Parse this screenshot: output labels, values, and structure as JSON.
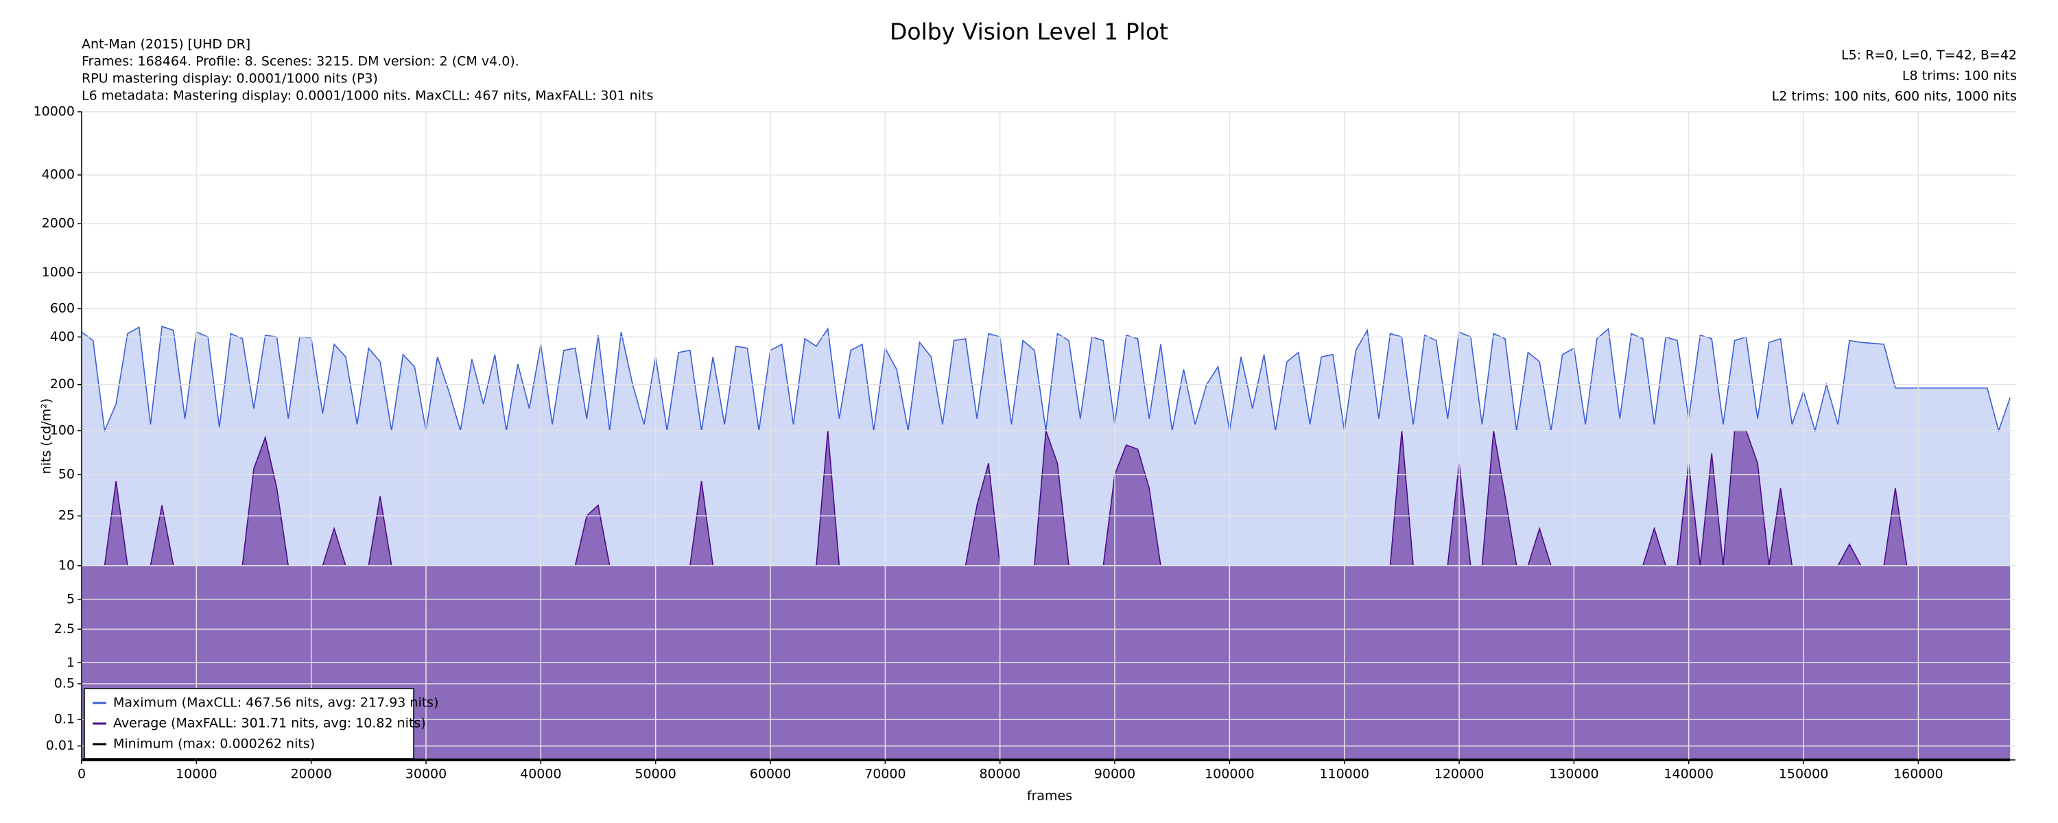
{
  "chart_data": {
    "type": "area-line",
    "title": "Dolby Vision Level 1 Plot",
    "info_left": [
      "Ant-Man (2015) [UHD DR]",
      "Frames: 168464. Profile: 8. Scenes: 3215. DM version: 2 (CM v4.0).",
      "RPU mastering display: 0.0001/1000 nits  (P3)",
      "L6 metadata: Mastering display: 0.0001/1000 nits. MaxCLL: 467 nits, MaxFALL: 301 nits"
    ],
    "info_right": [
      "L5: R=0, L=0, T=42, B=42",
      "L8 trims: 100 nits",
      "L2 trims: 100 nits, 600 nits, 1000 nits"
    ],
    "x_label": "frames",
    "y_label": "nits (cd/m²)",
    "y_scale": "pq",
    "grid": true,
    "legend": "lower left",
    "xlim": [
      0,
      168464
    ],
    "xticks": [
      0,
      10000,
      20000,
      30000,
      40000,
      50000,
      60000,
      70000,
      80000,
      90000,
      100000,
      110000,
      120000,
      130000,
      140000,
      150000,
      160000
    ],
    "ylim": [
      0,
      10000
    ],
    "yticks": [
      0.01,
      0.1,
      0.5,
      1,
      2.5,
      5,
      10,
      25,
      50,
      100,
      200,
      400,
      600,
      1000,
      2000,
      4000,
      10000
    ],
    "x": [
      0,
      1000,
      2000,
      3000,
      4000,
      5000,
      6000,
      7000,
      8000,
      9000,
      10000,
      11000,
      12000,
      13000,
      14000,
      15000,
      16000,
      17000,
      18000,
      19000,
      20000,
      21000,
      22000,
      23000,
      24000,
      25000,
      26000,
      27000,
      28000,
      29000,
      30000,
      31000,
      32000,
      33000,
      34000,
      35000,
      36000,
      37000,
      38000,
      39000,
      40000,
      41000,
      42000,
      43000,
      44000,
      45000,
      46000,
      47000,
      48000,
      49000,
      50000,
      51000,
      52000,
      53000,
      54000,
      55000,
      56000,
      57000,
      58000,
      59000,
      60000,
      61000,
      62000,
      63000,
      64000,
      65000,
      66000,
      67000,
      68000,
      69000,
      70000,
      71000,
      72000,
      73000,
      74000,
      75000,
      76000,
      77000,
      78000,
      79000,
      80000,
      81000,
      82000,
      83000,
      84000,
      85000,
      86000,
      87000,
      88000,
      89000,
      90000,
      91000,
      92000,
      93000,
      94000,
      95000,
      96000,
      97000,
      98000,
      99000,
      100000,
      101000,
      102000,
      103000,
      104000,
      105000,
      106000,
      107000,
      108000,
      109000,
      110000,
      111000,
      112000,
      113000,
      114000,
      115000,
      116000,
      117000,
      118000,
      119000,
      120000,
      121000,
      122000,
      123000,
      124000,
      125000,
      126000,
      127000,
      128000,
      129000,
      130000,
      131000,
      132000,
      133000,
      134000,
      135000,
      136000,
      137000,
      138000,
      139000,
      140000,
      141000,
      142000,
      143000,
      144000,
      145000,
      146000,
      147000,
      148000,
      149000,
      150000,
      151000,
      152000,
      153000,
      154000,
      155000,
      156000,
      157000,
      158000,
      159000,
      160000,
      161000,
      162000,
      163000,
      164000,
      165000,
      166000,
      167000,
      168000
    ],
    "series": [
      {
        "name": "Maximum (MaxCLL: 467.56 nits, avg: 217.93 nits)",
        "color": "#3c5fd8",
        "fill": "#d0d9f5",
        "values": [
          430,
          380,
          100,
          150,
          420,
          460,
          110,
          465,
          440,
          120,
          430,
          400,
          105,
          420,
          390,
          140,
          410,
          400,
          120,
          400,
          395,
          130,
          360,
          300,
          110,
          340,
          280,
          100,
          310,
          260,
          100,
          300,
          180,
          100,
          290,
          150,
          310,
          100,
          270,
          140,
          360,
          110,
          330,
          340,
          120,
          410,
          100,
          430,
          200,
          110,
          300,
          100,
          320,
          330,
          100,
          300,
          110,
          350,
          340,
          100,
          330,
          360,
          110,
          390,
          350,
          450,
          120,
          330,
          360,
          100,
          340,
          250,
          100,
          370,
          300,
          110,
          380,
          390,
          120,
          420,
          400,
          110,
          380,
          330,
          100,
          420,
          380,
          120,
          400,
          380,
          110,
          410,
          390,
          120,
          360,
          100,
          250,
          110,
          200,
          260,
          100,
          300,
          140,
          310,
          100,
          280,
          320,
          110,
          300,
          310,
          100,
          330,
          440,
          120,
          420,
          400,
          110,
          410,
          380,
          120,
          430,
          400,
          110,
          420,
          390,
          100,
          320,
          280,
          100,
          310,
          340,
          110,
          390,
          450,
          120,
          420,
          390,
          110,
          400,
          380,
          120,
          410,
          390,
          110,
          380,
          400,
          120,
          370,
          390,
          110,
          180,
          100,
          200,
          110,
          380,
          370,
          365,
          360,
          190,
          190,
          190,
          190,
          190,
          190,
          190,
          190,
          190,
          100,
          165
        ]
      },
      {
        "name": "Average (MaxFALL: 301.71 nits, avg: 10.82 nits)",
        "color": "#4b0a8c",
        "fill": "#8c6bbd",
        "values": [
          10,
          10,
          10,
          45,
          10,
          10,
          10,
          30,
          10,
          10,
          10,
          10,
          10,
          10,
          10,
          55,
          90,
          40,
          10,
          10,
          10,
          10,
          20,
          10,
          10,
          10,
          35,
          10,
          10,
          10,
          10,
          10,
          10,
          10,
          10,
          10,
          10,
          10,
          10,
          10,
          10,
          10,
          10,
          10,
          25,
          30,
          10,
          10,
          10,
          10,
          10,
          10,
          10,
          10,
          45,
          10,
          10,
          10,
          10,
          10,
          10,
          10,
          10,
          10,
          10,
          100,
          10,
          10,
          10,
          10,
          10,
          10,
          10,
          10,
          10,
          10,
          10,
          10,
          30,
          60,
          10,
          10,
          10,
          10,
          100,
          60,
          10,
          10,
          10,
          10,
          50,
          80,
          75,
          40,
          10,
          10,
          10,
          10,
          10,
          10,
          10,
          10,
          10,
          10,
          10,
          10,
          10,
          10,
          10,
          10,
          10,
          10,
          10,
          10,
          10,
          100,
          10,
          10,
          10,
          10,
          60,
          10,
          10,
          100,
          35,
          10,
          10,
          20,
          10,
          10,
          10,
          10,
          10,
          10,
          10,
          10,
          10,
          20,
          10,
          10,
          60,
          10,
          70,
          10,
          100,
          100,
          60,
          10,
          40,
          10,
          10,
          10,
          10,
          10,
          15,
          10,
          10,
          10,
          40,
          10,
          10,
          10,
          10,
          10,
          10,
          10,
          10,
          10,
          10
        ]
      },
      {
        "name": "Minimum (max: 0.000262 nits)",
        "color": "#000000",
        "values": [
          0,
          0,
          0,
          0,
          0,
          0,
          0,
          0,
          0,
          0,
          0,
          0,
          0,
          0,
          0,
          0,
          0,
          0,
          0,
          0,
          0,
          0,
          0,
          0,
          0,
          0,
          0,
          0,
          0,
          0,
          0,
          0,
          0,
          0,
          0,
          0,
          0,
          0,
          0,
          0,
          0,
          0,
          0,
          0,
          0,
          0,
          0,
          0,
          0,
          0,
          0,
          0,
          0,
          0,
          0,
          0,
          0,
          0,
          0,
          0,
          0,
          0,
          0,
          0,
          0,
          0,
          0,
          0,
          0,
          0,
          0,
          0,
          0,
          0,
          0,
          0,
          0,
          0,
          0,
          0,
          0,
          0,
          0,
          0,
          0,
          0,
          0,
          0,
          0,
          0,
          0,
          0,
          0,
          0,
          0,
          0,
          0,
          0,
          0,
          0,
          0,
          0,
          0,
          0,
          0,
          0,
          0,
          0,
          0,
          0,
          0,
          0,
          0,
          0,
          0,
          0,
          0,
          0,
          0,
          0,
          0,
          0,
          0,
          0,
          0,
          0,
          0,
          0,
          0,
          0,
          0,
          0,
          0,
          0,
          0,
          0,
          0,
          0,
          0,
          0,
          0,
          0,
          0,
          0,
          0,
          0,
          0,
          0,
          0,
          0,
          0,
          0,
          0,
          0,
          0,
          0,
          0,
          0,
          0,
          0,
          0,
          0,
          0,
          0,
          0,
          0,
          0,
          0,
          0
        ]
      }
    ]
  }
}
